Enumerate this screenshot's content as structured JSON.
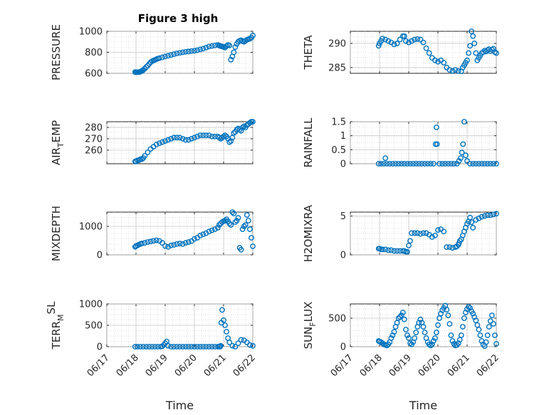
{
  "figure_title": "Figure 3 high",
  "chart_data": [
    {
      "type": "scatter",
      "title": "Figure 3 high",
      "ylabel": {
        "base": "PRESSURE",
        "sub": "",
        "post": ""
      },
      "xlabel": "",
      "xlim": [
        0,
        5
      ],
      "ylim": [
        600,
        1000
      ],
      "yticks": [
        600,
        800,
        1000
      ],
      "xticklabels": [],
      "grid": true,
      "marker": "circle-open",
      "color": "#0072BD",
      "x": [
        0.97,
        1.0,
        1.03,
        1.06,
        1.09,
        1.12,
        1.15,
        1.18,
        1.22,
        1.25,
        1.3,
        1.35,
        1.4,
        1.45,
        1.5,
        1.55,
        1.6,
        1.65,
        1.7,
        1.75,
        1.8,
        1.9,
        2.0,
        2.1,
        2.2,
        2.3,
        2.4,
        2.5,
        2.6,
        2.7,
        2.8,
        2.9,
        3.0,
        3.1,
        3.2,
        3.3,
        3.4,
        3.5,
        3.6,
        3.7,
        3.8,
        3.85,
        3.88,
        3.92,
        3.96,
        4.0,
        4.05,
        4.1,
        4.15,
        4.2,
        4.25,
        4.3,
        4.35,
        4.4,
        4.45,
        4.5,
        4.55,
        4.6,
        4.65,
        4.7,
        4.75,
        4.8,
        4.85,
        4.9,
        4.95,
        5.0
      ],
      "y": [
        612,
        610,
        610,
        611,
        612,
        612,
        615,
        620,
        625,
        632,
        645,
        660,
        672,
        690,
        705,
        715,
        722,
        728,
        735,
        740,
        745,
        752,
        760,
        768,
        775,
        782,
        790,
        795,
        800,
        805,
        808,
        812,
        815,
        820,
        828,
        835,
        845,
        855,
        860,
        865,
        870,
        865,
        860,
        858,
        855,
        850,
        845,
        860,
        870,
        865,
        730,
        760,
        800,
        850,
        880,
        900,
        910,
        915,
        905,
        900,
        910,
        920,
        925,
        930,
        940,
        960
      ]
    },
    {
      "type": "scatter",
      "ylabel": {
        "base": "AIR",
        "sub": "T",
        "post": "EMP"
      },
      "xlabel": "",
      "xlim": [
        0,
        5
      ],
      "ylim": [
        248,
        285
      ],
      "yticks": [
        260,
        270,
        280
      ],
      "xticklabels": [],
      "grid": true,
      "marker": "circle-open",
      "color": "#0072BD",
      "x": [
        0.97,
        1.0,
        1.05,
        1.1,
        1.15,
        1.2,
        1.25,
        1.3,
        1.4,
        1.5,
        1.6,
        1.7,
        1.8,
        1.9,
        2.0,
        2.1,
        2.2,
        2.3,
        2.4,
        2.5,
        2.6,
        2.7,
        2.8,
        2.9,
        3.0,
        3.1,
        3.2,
        3.3,
        3.4,
        3.5,
        3.6,
        3.7,
        3.8,
        3.85,
        3.9,
        3.95,
        4.0,
        4.05,
        4.1,
        4.15,
        4.2,
        4.25,
        4.3,
        4.35,
        4.4,
        4.45,
        4.5,
        4.55,
        4.6,
        4.65,
        4.7,
        4.75,
        4.8,
        4.85,
        4.9,
        4.95,
        5.0
      ],
      "y": [
        250,
        250,
        251,
        251,
        252,
        252,
        253,
        255,
        258,
        261,
        263,
        265,
        266,
        267,
        268,
        269,
        270,
        271,
        271,
        271,
        270,
        269,
        269,
        270,
        271,
        272,
        273,
        273,
        273,
        273,
        272,
        272,
        272,
        271,
        270,
        271,
        272,
        273,
        272,
        270,
        267,
        268,
        271,
        275,
        276,
        278,
        279,
        278,
        277,
        280,
        281,
        280,
        282,
        283,
        284,
        285,
        285
      ]
    },
    {
      "type": "scatter",
      "ylabel": {
        "base": "MIXDEPTH",
        "sub": "",
        "post": ""
      },
      "xlabel": "",
      "xlim": [
        0,
        5
      ],
      "ylim": [
        0,
        1500
      ],
      "yticks": [
        0,
        1000
      ],
      "xticklabels": [],
      "grid": true,
      "marker": "circle-open",
      "color": "#0072BD",
      "x": [
        0.97,
        1.0,
        1.05,
        1.1,
        1.15,
        1.2,
        1.3,
        1.4,
        1.5,
        1.6,
        1.7,
        1.8,
        1.9,
        2.0,
        2.1,
        2.2,
        2.3,
        2.4,
        2.5,
        2.6,
        2.7,
        2.8,
        2.9,
        3.0,
        3.1,
        3.2,
        3.3,
        3.4,
        3.5,
        3.6,
        3.7,
        3.8,
        3.85,
        3.9,
        3.95,
        4.0,
        4.05,
        4.1,
        4.15,
        4.2,
        4.25,
        4.3,
        4.35,
        4.4,
        4.45,
        4.5,
        4.55,
        4.6,
        4.65,
        4.7,
        4.75,
        4.8,
        4.85,
        4.9,
        4.95,
        5.0
      ],
      "y": [
        280,
        310,
        330,
        360,
        380,
        400,
        420,
        450,
        470,
        490,
        510,
        490,
        420,
        310,
        280,
        330,
        350,
        380,
        400,
        380,
        420,
        450,
        480,
        560,
        600,
        680,
        720,
        760,
        820,
        860,
        900,
        950,
        1050,
        1100,
        1150,
        1180,
        1200,
        1250,
        1180,
        1100,
        1050,
        1500,
        1450,
        1150,
        1200,
        1300,
        250,
        180,
        900,
        1000,
        1050,
        1400,
        1200,
        900,
        600,
        300
      ]
    },
    {
      "type": "scatter",
      "ylabel": {
        "base": "TERR",
        "sub": "M",
        "post": "SL",
        "sup": true
      },
      "xlabel": "Time",
      "xlim": [
        0,
        5
      ],
      "ylim": [
        0,
        1000
      ],
      "yticks": [
        0,
        500,
        1000
      ],
      "xticklabels": [
        "06/17",
        "06/18",
        "06/19",
        "06/20",
        "06/21",
        "06/22"
      ],
      "grid": true,
      "marker": "circle-open",
      "color": "#0072BD",
      "x": [
        0.97,
        1.05,
        1.15,
        1.25,
        1.35,
        1.45,
        1.55,
        1.65,
        1.75,
        1.85,
        1.9,
        1.95,
        2.0,
        2.05,
        2.1,
        2.2,
        2.3,
        2.4,
        2.5,
        2.6,
        2.7,
        2.8,
        2.9,
        3.0,
        3.1,
        3.2,
        3.3,
        3.4,
        3.5,
        3.6,
        3.7,
        3.8,
        3.85,
        3.88,
        3.9,
        3.92,
        3.95,
        4.0,
        4.05,
        4.1,
        4.15,
        4.2,
        4.3,
        4.4,
        4.5,
        4.6,
        4.7,
        4.8,
        4.9,
        5.0
      ],
      "y": [
        0,
        0,
        0,
        0,
        0,
        0,
        0,
        0,
        0,
        0,
        10,
        40,
        80,
        120,
        20,
        0,
        0,
        0,
        0,
        0,
        0,
        0,
        0,
        0,
        0,
        0,
        0,
        0,
        0,
        0,
        0,
        0,
        0,
        0,
        20,
        560,
        860,
        620,
        500,
        350,
        200,
        100,
        20,
        0,
        80,
        160,
        150,
        100,
        40,
        20
      ]
    },
    {
      "type": "scatter",
      "ylabel": {
        "base": "THETA",
        "sub": "",
        "post": ""
      },
      "xlabel": "",
      "xlim": [
        0,
        5
      ],
      "ylim": [
        283.8,
        292.5
      ],
      "yticks": [
        285,
        290
      ],
      "xticklabels": [],
      "grid": true,
      "marker": "circle-open",
      "color": "#0072BD",
      "x": [
        0.97,
        1.0,
        1.05,
        1.1,
        1.2,
        1.3,
        1.4,
        1.5,
        1.6,
        1.7,
        1.8,
        1.85,
        1.9,
        2.0,
        2.1,
        2.2,
        2.3,
        2.4,
        2.5,
        2.6,
        2.7,
        2.8,
        2.9,
        3.0,
        3.1,
        3.2,
        3.3,
        3.4,
        3.5,
        3.6,
        3.7,
        3.8,
        3.85,
        3.9,
        3.95,
        4.0,
        4.05,
        4.1,
        4.15,
        4.2,
        4.25,
        4.3,
        4.35,
        4.4,
        4.45,
        4.5,
        4.55,
        4.6,
        4.65,
        4.7,
        4.75,
        4.8,
        4.85,
        4.9,
        4.95,
        5.0
      ],
      "y": [
        289.5,
        290,
        290.5,
        291,
        290.8,
        290.5,
        290.2,
        289.8,
        290,
        290.8,
        291.5,
        291.5,
        290.5,
        290.2,
        290.5,
        290.8,
        290.9,
        290.8,
        290.2,
        289,
        288,
        287,
        286.5,
        286.2,
        286.5,
        286,
        285,
        284.5,
        284.3,
        284.5,
        284.3,
        284.2,
        285,
        285.5,
        286,
        286.5,
        288,
        289.5,
        292.5,
        291.5,
        290,
        288,
        286.5,
        287,
        287.5,
        288,
        288.2,
        288.5,
        288.3,
        288.6,
        288.8,
        288.4,
        288.7,
        288.9,
        288.2,
        288
      ]
    },
    {
      "type": "scatter",
      "ylabel": {
        "base": "RAINFALL",
        "sub": "",
        "post": ""
      },
      "xlabel": "",
      "xlim": [
        0,
        5
      ],
      "ylim": [
        0,
        1.5
      ],
      "yticks": [
        0,
        0.5,
        1,
        1.5
      ],
      "xticklabels": [],
      "grid": true,
      "marker": "circle-open",
      "color": "#0072BD",
      "x": [
        0.97,
        1.05,
        1.15,
        1.2,
        1.25,
        1.35,
        1.45,
        1.55,
        1.65,
        1.75,
        1.85,
        1.95,
        2.05,
        2.15,
        2.25,
        2.35,
        2.45,
        2.55,
        2.65,
        2.75,
        2.85,
        2.92,
        2.95,
        2.97,
        3.05,
        3.15,
        3.25,
        3.35,
        3.45,
        3.55,
        3.65,
        3.72,
        3.78,
        3.82,
        3.86,
        3.9,
        3.95,
        4.0,
        4.1,
        4.2,
        4.3,
        4.4,
        4.5,
        4.6,
        4.7,
        4.8,
        4.9,
        5.0
      ],
      "y": [
        0,
        0,
        0,
        0.2,
        0,
        0,
        0,
        0,
        0,
        0,
        0,
        0,
        0,
        0,
        0,
        0,
        0,
        0,
        0,
        0,
        0,
        0.7,
        1.3,
        0.7,
        0,
        0,
        0,
        0,
        0,
        0,
        0,
        0.1,
        0.2,
        0.4,
        0.7,
        1.5,
        0.3,
        0.1,
        0,
        0,
        0,
        0,
        0,
        0,
        0,
        0,
        0,
        0
      ]
    },
    {
      "type": "scatter",
      "ylabel": {
        "base": "H2OMIXRA",
        "sub": "",
        "post": ""
      },
      "xlabel": "",
      "xlim": [
        0,
        5
      ],
      "ylim": [
        0,
        5.5
      ],
      "yticks": [
        0,
        5
      ],
      "xticklabels": [],
      "grid": true,
      "marker": "circle-open",
      "color": "#0072BD",
      "x": [
        0.97,
        1.0,
        1.05,
        1.1,
        1.2,
        1.3,
        1.4,
        1.5,
        1.6,
        1.7,
        1.8,
        1.85,
        1.9,
        1.95,
        2.0,
        2.05,
        2.1,
        2.2,
        2.3,
        2.4,
        2.5,
        2.6,
        2.7,
        2.8,
        2.9,
        3.0,
        3.1,
        3.2,
        3.3,
        3.4,
        3.5,
        3.6,
        3.65,
        3.7,
        3.72,
        3.75,
        3.8,
        3.85,
        3.9,
        3.95,
        4.0,
        4.05,
        4.1,
        4.15,
        4.2,
        4.3,
        4.4,
        4.5,
        4.6,
        4.7,
        4.8,
        4.9,
        5.0
      ],
      "y": [
        0.8,
        0.8,
        0.7,
        0.7,
        0.7,
        0.6,
        0.6,
        0.5,
        0.5,
        0.5,
        0.5,
        0.5,
        0.4,
        0.4,
        1.2,
        1.8,
        2.8,
        2.8,
        2.8,
        2.7,
        2.8,
        2.8,
        2.6,
        2.3,
        2.5,
        3.2,
        3.3,
        3.0,
        1.0,
        1.0,
        0.9,
        1.0,
        1.1,
        1.3,
        1.5,
        1.8,
        2.0,
        2.5,
        3.0,
        3.5,
        4.0,
        4.3,
        4.8,
        4.2,
        3.5,
        4.5,
        4.7,
        4.9,
        5.0,
        5.1,
        5.1,
        5.2,
        5.3
      ]
    },
    {
      "type": "scatter",
      "ylabel": {
        "base": "SUN",
        "sub": "F",
        "post": "LUX"
      },
      "xlabel": "Time",
      "xlim": [
        0,
        5
      ],
      "ylim": [
        0,
        750
      ],
      "yticks": [
        0,
        500
      ],
      "xticklabels": [
        "06/17",
        "06/18",
        "06/19",
        "06/20",
        "06/21",
        "06/22"
      ],
      "grid": true,
      "marker": "circle-open",
      "color": "#0072BD",
      "x": [
        0.97,
        1.0,
        1.05,
        1.1,
        1.15,
        1.2,
        1.25,
        1.3,
        1.35,
        1.4,
        1.45,
        1.5,
        1.55,
        1.6,
        1.65,
        1.7,
        1.75,
        1.8,
        1.85,
        1.9,
        1.95,
        2.0,
        2.05,
        2.1,
        2.15,
        2.2,
        2.25,
        2.3,
        2.35,
        2.4,
        2.45,
        2.5,
        2.55,
        2.6,
        2.65,
        2.7,
        2.75,
        2.8,
        2.85,
        2.9,
        2.95,
        3.0,
        3.05,
        3.1,
        3.15,
        3.2,
        3.25,
        3.3,
        3.35,
        3.4,
        3.45,
        3.5,
        3.55,
        3.6,
        3.65,
        3.7,
        3.75,
        3.8,
        3.85,
        3.9,
        3.95,
        4.0,
        4.05,
        4.1,
        4.15,
        4.2,
        4.25,
        4.3,
        4.35,
        4.4,
        4.45,
        4.5,
        4.55,
        4.6,
        4.65,
        4.7,
        4.75,
        4.8,
        4.85,
        4.9,
        4.95,
        5.0
      ],
      "y": [
        100,
        90,
        80,
        60,
        40,
        30,
        20,
        40,
        80,
        150,
        200,
        260,
        350,
        420,
        500,
        520,
        550,
        600,
        480,
        300,
        200,
        150,
        60,
        40,
        80,
        150,
        250,
        350,
        420,
        480,
        420,
        350,
        250,
        150,
        80,
        40,
        20,
        40,
        100,
        150,
        250,
        380,
        500,
        580,
        640,
        680,
        720,
        650,
        550,
        400,
        200,
        100,
        50,
        20,
        30,
        60,
        120,
        200,
        350,
        500,
        600,
        660,
        700,
        680,
        620,
        580,
        520,
        460,
        380,
        300,
        200,
        100,
        40,
        10,
        80,
        200,
        350,
        450,
        550,
        400,
        200,
        50
      ]
    }
  ]
}
